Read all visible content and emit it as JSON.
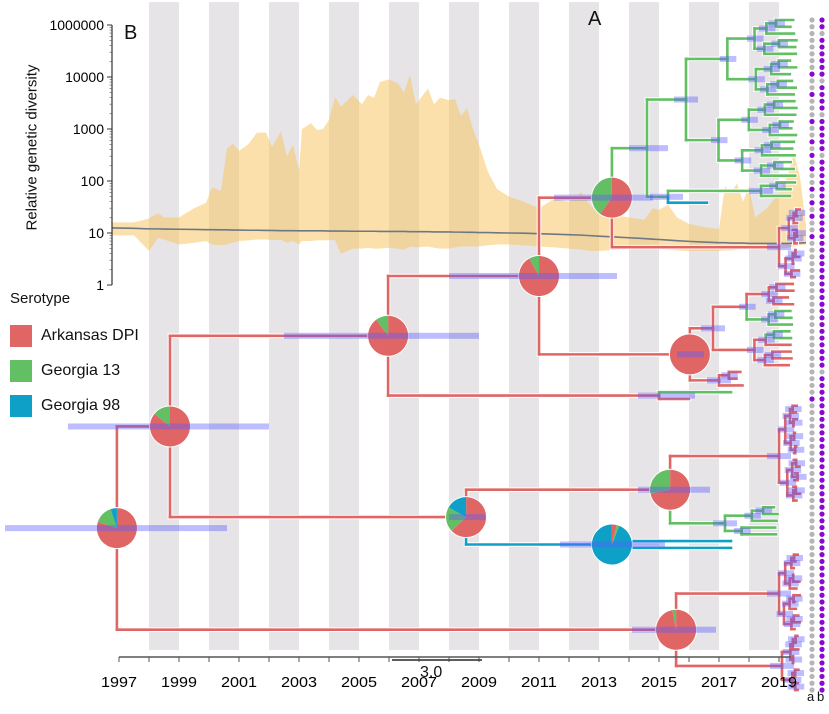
{
  "figure": {
    "panel_a_label": "A",
    "panel_b_label": "B"
  },
  "legend": {
    "title": "Serotype",
    "items": [
      {
        "key": "red",
        "label": "Arkansas DPI",
        "color": "#e06666"
      },
      {
        "key": "green",
        "label": "Georgia 13",
        "color": "#63bf63"
      },
      {
        "key": "blue",
        "label": "Georgia 98",
        "color": "#0fa0c8"
      }
    ]
  },
  "scale_bar": {
    "label": "3.0",
    "value": 3.0
  },
  "time_axis": {
    "min": 1997,
    "max": 2019.4,
    "tick_labels": [
      "1997",
      "1999",
      "2001",
      "2003",
      "2005",
      "2007",
      "2009",
      "2011",
      "2013",
      "2015",
      "2017",
      "2019"
    ],
    "shaded_years": [
      1998,
      2000,
      2002,
      2004,
      2006,
      2008,
      2010,
      2012,
      2014,
      2016,
      2018
    ]
  },
  "trait_columns": {
    "labels": [
      "a",
      "b"
    ],
    "colors": {
      "g": "#b5b5b5",
      "p": "#8a06d2"
    },
    "a": "ggggggggpggpgggpggpgpgpggpgpgpggpgggggggggggggggggggggggpgggggggggggggggggggggggggggggggggggggggggg",
    "b": "ppgppppppgppppgpppppgpppppppppppppppppppppppppppppppgppppppppppppppppppppppppppppppppppppppppppppppp"
  },
  "chart_data": [
    {
      "type": "area",
      "title": "",
      "ylabel": "Relative genetic diversity",
      "y_scale": "log",
      "y_tick_labels": [
        "1",
        "10",
        "100",
        "1000",
        "10000",
        "1000000"
      ],
      "band_color": "#f7c766",
      "median_color": "#6e7885",
      "x": [
        1996.77,
        1997.5,
        1998.0,
        1998.3,
        1998.5,
        1999.0,
        1999.5,
        1999.9,
        2000.1,
        2000.4,
        2000.6,
        2000.8,
        2001.0,
        2001.3,
        2001.6,
        2001.9,
        2002.1,
        2002.4,
        2002.6,
        2002.8,
        2003.0,
        2003.1,
        2003.4,
        2003.6,
        2003.8,
        2004.0,
        2004.2,
        2004.4,
        2004.8,
        2005.1,
        2005.3,
        2005.5,
        2005.7,
        2006.0,
        2006.3,
        2006.5,
        2006.7,
        2006.9,
        2007.3,
        2007.5,
        2007.7,
        2008.0,
        2008.2,
        2008.4,
        2008.6,
        2008.8,
        2009.0,
        2009.3,
        2009.6,
        2010.0,
        2010.5,
        2011.0,
        2011.5,
        2012.0,
        2012.4,
        2012.7,
        2013.0,
        2013.5,
        2014.0,
        2014.5,
        2014.8,
        2015.0,
        2015.3,
        2015.6,
        2016.0,
        2016.5,
        2017.0,
        2017.2,
        2017.4,
        2017.6,
        2017.8,
        2018.0,
        2018.2,
        2018.6,
        2019.0,
        2019.3,
        2019.5,
        2019.7,
        2019.9
      ],
      "upper": [
        16,
        16,
        19,
        24,
        20,
        20,
        30,
        38,
        75,
        65,
        420,
        520,
        380,
        500,
        850,
        850,
        450,
        900,
        300,
        500,
        160,
        1000,
        1300,
        950,
        1000,
        1500,
        4200,
        2700,
        4500,
        3000,
        4500,
        4000,
        8000,
        9000,
        7500,
        5000,
        11000,
        3000,
        6000,
        3000,
        4000,
        3600,
        3800,
        1800,
        2500,
        1000,
        500,
        150,
        70,
        50,
        40,
        30,
        45,
        40,
        60,
        35,
        25,
        22,
        20,
        18,
        30,
        28,
        35,
        20,
        15,
        13,
        12,
        80,
        60,
        90,
        40,
        80,
        20,
        30,
        60,
        130,
        350,
        120,
        14
      ],
      "median": [
        12.5,
        12.3,
        12,
        12,
        11.9,
        11.8,
        11.7,
        11.6,
        11.6,
        11.5,
        11.5,
        11.4,
        11.4,
        11.3,
        11.3,
        11.2,
        11.2,
        11.1,
        11.1,
        11.1,
        11,
        11,
        11,
        11,
        11,
        10.9,
        10.9,
        10.9,
        10.8,
        10.8,
        10.8,
        10.8,
        10.7,
        10.7,
        10.7,
        10.7,
        10.6,
        10.6,
        10.6,
        10.5,
        10.5,
        10.5,
        10.4,
        10.4,
        10.3,
        10.3,
        10.2,
        10.2,
        10.1,
        10,
        9.9,
        9.7,
        9.5,
        9.3,
        9.1,
        8.9,
        8.7,
        8.4,
        8.1,
        7.8,
        7.6,
        7.5,
        7.3,
        7.1,
        6.9,
        6.7,
        6.5,
        6.5,
        6.4,
        6.4,
        6.4,
        6.3,
        6.3,
        6.3,
        6.3,
        6.3,
        6.4,
        6.4,
        6.5
      ],
      "lower": [
        9,
        9,
        4.5,
        8,
        7.5,
        6,
        6.5,
        7,
        6,
        5.8,
        6,
        6.5,
        7,
        7.2,
        7.5,
        7.5,
        7.3,
        7.4,
        6.5,
        7,
        6,
        7,
        7,
        7.2,
        7.2,
        7.3,
        7.3,
        4,
        5,
        5,
        5.2,
        5,
        5,
        5.2,
        5,
        4.8,
        5.5,
        5.3,
        5.5,
        5.2,
        5,
        5,
        5.3,
        5.5,
        5.5,
        5.5,
        5.5,
        5.8,
        6,
        6,
        5.8,
        5.5,
        5.3,
        5,
        4.8,
        4.5,
        4.5,
        4.7,
        5,
        5,
        5.2,
        5,
        4.8,
        4.6,
        4.5,
        4.5,
        4.5,
        4.6,
        4.6,
        4.8,
        5,
        5,
        5,
        5,
        5,
        5.2,
        5.5,
        5.8,
        6
      ]
    },
    {
      "type": "tree",
      "x_unit": "year",
      "root": {
        "id": "root",
        "t": 1996.93,
        "pie": {
          "red": 0.8,
          "green": 0.15,
          "blue": 0.05
        },
        "hpd": [
          1993.2,
          2000.6
        ],
        "children": [
          {
            "id": "n1",
            "t": 1998.7,
            "pie": {
              "red": 0.86,
              "green": 0.14,
              "blue": 0
            },
            "hpd": [
              1995.3,
              2002.0
            ],
            "children": [
              {
                "id": "n2",
                "t": 2005.97,
                "pie": {
                  "red": 0.9,
                  "green": 0.1,
                  "blue": 0
                },
                "hpd": [
                  2002.5,
                  2009.0
                ],
                "children": [
                  {
                    "id": "n3",
                    "t": 2011.0,
                    "pie": {
                      "red": 0.92,
                      "green": 0.08,
                      "blue": 0
                    },
                    "hpd": [
                      2008.0,
                      2013.6
                    ],
                    "children": [
                      {
                        "id": "n4",
                        "t": 2013.43,
                        "pie": {
                          "red": 0.6,
                          "green": 0.4,
                          "blue": 0
                        },
                        "hpd": [
                          2011.5,
                          2014.8
                        ],
                        "children": [
                          {
                            "t": 2014.6,
                            "color": "green",
                            "hpd": [
                              2014.0,
                              2015.3
                            ],
                            "children": [
                              {
                                "clade": "green",
                                "n": 24,
                                "t": 2015.9,
                                "t1": 2019.6
                              },
                              {
                                "t": 2015.3,
                                "color": "green",
                                "hpd": [
                                  2014.7,
                                  2015.8
                                ],
                                "children": [
                                  {
                                    "clade": "green",
                                    "n": 3,
                                    "t": 2018.4,
                                    "t1": 2019.6
                                  },
                                  {
                                    "leaf": true,
                                    "t": 2016.6,
                                    "color": "blue"
                                  }
                                ]
                              }
                            ]
                          },
                          {
                            "clade": "red",
                            "n": 11,
                            "t": 2019.0,
                            "t1": 2019.7
                          }
                        ]
                      },
                      {
                        "id": "n6",
                        "t": 2016.03,
                        "pie": {
                          "red": 1.0,
                          "green": 0,
                          "blue": 0
                        },
                        "hpd": [
                          2015.6,
                          2016.5
                        ],
                        "children": [
                          {
                            "clade": "red",
                            "n": 13,
                            "t": 2016.8,
                            "t1": 2019.5,
                            "sub": {
                              "color": "green",
                              "from": 4,
                              "n": 5
                            }
                          },
                          {
                            "clade": "red",
                            "n": 3,
                            "t": 2017.0,
                            "t1": 2017.8
                          }
                        ]
                      }
                    ]
                  },
                  {
                    "t": 2015.0,
                    "color": "red",
                    "hpd": [
                      2014.3,
                      2016.2
                    ],
                    "children": [
                      {
                        "leaf": true,
                        "t": 2017.4,
                        "color": "green"
                      },
                      {
                        "leaf": true,
                        "t": 2016.0,
                        "color": "red"
                      }
                    ]
                  }
                ]
              },
              {
                "id": "n5",
                "t": 2008.57,
                "pie": {
                  "red": 0.63,
                  "green": 0.2,
                  "blue": 0.17
                },
                "hpd": [
                  2008.0,
                  2009.2
                ],
                "children": [
                  {
                    "id": "n7",
                    "t": 2015.37,
                    "pie": {
                      "red": 0.72,
                      "green": 0.28,
                      "blue": 0
                    },
                    "hpd": [
                      2014.3,
                      2016.7
                    ],
                    "children": [
                      {
                        "clade": "red",
                        "n": 15,
                        "t": 2019.0,
                        "t1": 2019.7
                      },
                      {
                        "clade": "green",
                        "n": 5,
                        "t": 2017.2,
                        "t1": 2019.0
                      }
                    ]
                  },
                  {
                    "id": "n8",
                    "t": 2013.43,
                    "color": "blue",
                    "pie": {
                      "red": 0.04,
                      "green": 0.02,
                      "blue": 0.94
                    },
                    "hpd": [
                      2011.7,
                      2015.2
                    ],
                    "children": [
                      {
                        "leaf": true,
                        "t": 2017.4,
                        "color": "blue"
                      },
                      {
                        "leaf": true,
                        "t": 2017.4,
                        "color": "blue"
                      }
                    ]
                  }
                ]
              }
            ]
          },
          {
            "id": "n9",
            "t": 2015.57,
            "pie": {
              "red": 0.97,
              "green": 0.03,
              "blue": 0
            },
            "hpd": [
              2014.1,
              2016.9
            ],
            "children": [
              {
                "clade": "red",
                "n": 12,
                "t": 2019.0,
                "t1": 2019.7
              },
              {
                "clade": "red",
                "n": 9,
                "t": 2019.1,
                "t1": 2019.7
              }
            ]
          }
        ]
      }
    }
  ]
}
